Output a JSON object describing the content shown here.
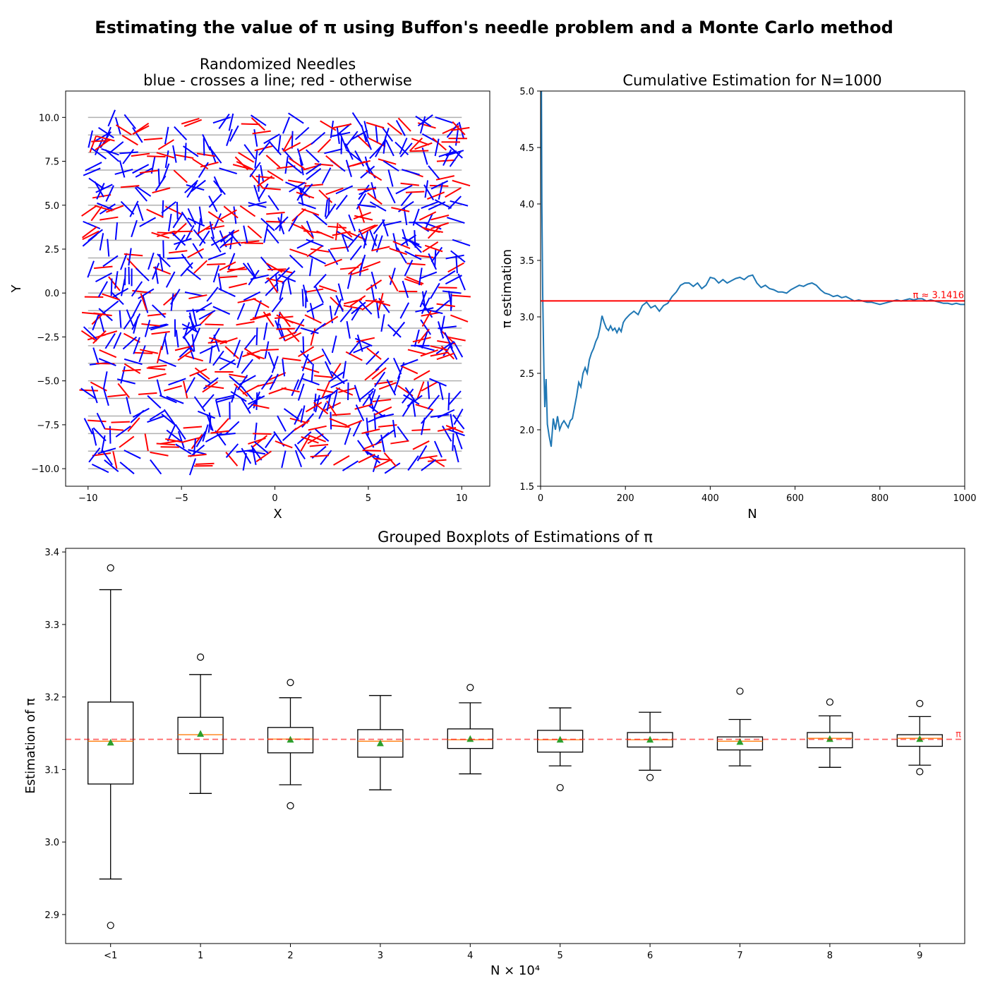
{
  "figure": {
    "title": "Estimating the value of π using Buffon's needle problem and a Monte Carlo method"
  },
  "chart_data": [
    {
      "type": "scatter",
      "title_line1": "Randomized Needles",
      "title_line2": "blue - crosses a line; red - otherwise",
      "xlabel": "X",
      "ylabel": "Y",
      "xlim": [
        -11.2,
        11.5
      ],
      "ylim": [
        -11.0,
        11.5
      ],
      "xticks": [
        -10,
        -5,
        0,
        5,
        10
      ],
      "yticks": [
        -10.0,
        -7.5,
        -5.0,
        -2.5,
        0.0,
        2.5,
        5.0,
        7.5,
        10.0
      ],
      "ytick_labels": [
        "−10.0",
        "−7.5",
        "−5.0",
        "−2.5",
        "0.0",
        "2.5",
        "5.0",
        "7.5",
        "10.0"
      ],
      "xtick_labels": [
        "−10",
        "−5",
        "0",
        "5",
        "10"
      ],
      "line_spacing": 1,
      "needle_length": 1,
      "needle_count": 1000,
      "region": [
        -10,
        10
      ],
      "colors": {
        "crosses": "#0000ff",
        "no_cross": "#ff0000",
        "lines": "#b0b0b0"
      }
    },
    {
      "type": "line",
      "title": "Cumulative Estimation for N=1000",
      "xlabel": "N",
      "ylabel": "π estimation",
      "xlim": [
        0,
        1000
      ],
      "ylim": [
        1.5,
        5.0
      ],
      "xticks": [
        0,
        200,
        400,
        600,
        800,
        1000
      ],
      "yticks": [
        1.5,
        2.0,
        2.5,
        3.0,
        3.5,
        4.0,
        4.5,
        5.0
      ],
      "reference": {
        "value": 3.1416,
        "label": "π ≈ 3.1416",
        "color": "#ff0000"
      },
      "series": [
        {
          "color": "#1f77b4",
          "points": [
            [
              1,
              8.0
            ],
            [
              2,
              5.0
            ],
            [
              3,
              4.0
            ],
            [
              5,
              3.2
            ],
            [
              8,
              2.5
            ],
            [
              10,
              2.2
            ],
            [
              13,
              2.45
            ],
            [
              16,
              2.05
            ],
            [
              20,
              1.95
            ],
            [
              25,
              1.85
            ],
            [
              30,
              2.1
            ],
            [
              35,
              2.0
            ],
            [
              40,
              2.12
            ],
            [
              45,
              2.0
            ],
            [
              50,
              2.05
            ],
            [
              55,
              2.08
            ],
            [
              60,
              2.05
            ],
            [
              65,
              2.02
            ],
            [
              70,
              2.08
            ],
            [
              75,
              2.1
            ],
            [
              80,
              2.2
            ],
            [
              85,
              2.3
            ],
            [
              90,
              2.42
            ],
            [
              95,
              2.38
            ],
            [
              100,
              2.5
            ],
            [
              105,
              2.55
            ],
            [
              110,
              2.5
            ],
            [
              115,
              2.62
            ],
            [
              120,
              2.68
            ],
            [
              125,
              2.72
            ],
            [
              130,
              2.78
            ],
            [
              135,
              2.82
            ],
            [
              140,
              2.9
            ],
            [
              145,
              3.01
            ],
            [
              150,
              2.95
            ],
            [
              155,
              2.9
            ],
            [
              160,
              2.88
            ],
            [
              165,
              2.92
            ],
            [
              170,
              2.88
            ],
            [
              175,
              2.9
            ],
            [
              180,
              2.86
            ],
            [
              185,
              2.9
            ],
            [
              190,
              2.87
            ],
            [
              195,
              2.95
            ],
            [
              200,
              2.98
            ],
            [
              210,
              3.02
            ],
            [
              220,
              3.05
            ],
            [
              230,
              3.02
            ],
            [
              240,
              3.1
            ],
            [
              250,
              3.13
            ],
            [
              260,
              3.08
            ],
            [
              270,
              3.1
            ],
            [
              280,
              3.05
            ],
            [
              290,
              3.1
            ],
            [
              300,
              3.12
            ],
            [
              310,
              3.18
            ],
            [
              320,
              3.22
            ],
            [
              330,
              3.28
            ],
            [
              340,
              3.3
            ],
            [
              350,
              3.3
            ],
            [
              360,
              3.27
            ],
            [
              370,
              3.3
            ],
            [
              380,
              3.25
            ],
            [
              390,
              3.28
            ],
            [
              400,
              3.35
            ],
            [
              410,
              3.34
            ],
            [
              420,
              3.3
            ],
            [
              430,
              3.33
            ],
            [
              440,
              3.3
            ],
            [
              450,
              3.32
            ],
            [
              460,
              3.34
            ],
            [
              470,
              3.35
            ],
            [
              480,
              3.33
            ],
            [
              490,
              3.36
            ],
            [
              500,
              3.37
            ],
            [
              510,
              3.3
            ],
            [
              520,
              3.26
            ],
            [
              530,
              3.28
            ],
            [
              540,
              3.25
            ],
            [
              550,
              3.24
            ],
            [
              560,
              3.22
            ],
            [
              570,
              3.22
            ],
            [
              580,
              3.21
            ],
            [
              590,
              3.24
            ],
            [
              600,
              3.26
            ],
            [
              610,
              3.28
            ],
            [
              620,
              3.27
            ],
            [
              630,
              3.29
            ],
            [
              640,
              3.3
            ],
            [
              650,
              3.28
            ],
            [
              660,
              3.24
            ],
            [
              670,
              3.21
            ],
            [
              680,
              3.2
            ],
            [
              690,
              3.18
            ],
            [
              700,
              3.19
            ],
            [
              710,
              3.17
            ],
            [
              720,
              3.18
            ],
            [
              730,
              3.16
            ],
            [
              740,
              3.14
            ],
            [
              750,
              3.15
            ],
            [
              760,
              3.14
            ],
            [
              770,
              3.13
            ],
            [
              780,
              3.13
            ],
            [
              790,
              3.12
            ],
            [
              800,
              3.11
            ],
            [
              810,
              3.12
            ],
            [
              820,
              3.13
            ],
            [
              830,
              3.14
            ],
            [
              840,
              3.15
            ],
            [
              850,
              3.14
            ],
            [
              860,
              3.15
            ],
            [
              870,
              3.16
            ],
            [
              880,
              3.15
            ],
            [
              890,
              3.16
            ],
            [
              900,
              3.16
            ],
            [
              910,
              3.14
            ],
            [
              920,
              3.15
            ],
            [
              930,
              3.14
            ],
            [
              940,
              3.13
            ],
            [
              950,
              3.12
            ],
            [
              960,
              3.12
            ],
            [
              970,
              3.11
            ],
            [
              980,
              3.12
            ],
            [
              990,
              3.11
            ],
            [
              1000,
              3.11
            ]
          ]
        }
      ]
    },
    {
      "type": "boxplot",
      "title": "Grouped Boxplots of Estimations of π",
      "xlabel": "N × 10⁴",
      "ylabel": "Estimation of π",
      "ylim": [
        2.86,
        3.405
      ],
      "yticks": [
        2.9,
        3.0,
        3.1,
        3.2,
        3.3,
        3.4
      ],
      "categories": [
        "<1",
        "1",
        "2",
        "3",
        "4",
        "5",
        "6",
        "7",
        "8",
        "9"
      ],
      "reference": {
        "value": 3.1416,
        "label": "π",
        "color": "#ff0000"
      },
      "colors": {
        "median": "#ff7f0e",
        "mean": "#2ca02c",
        "box": "#000000"
      },
      "boxes": [
        {
          "whislo": 2.949,
          "q1": 3.08,
          "med": 3.139,
          "q3": 3.193,
          "whishi": 3.348,
          "mean": 3.137,
          "fliers": [
            3.378,
            2.885
          ]
        },
        {
          "whislo": 3.067,
          "q1": 3.122,
          "med": 3.148,
          "q3": 3.172,
          "whishi": 3.231,
          "mean": 3.149,
          "fliers": [
            3.255
          ]
        },
        {
          "whislo": 3.079,
          "q1": 3.123,
          "med": 3.142,
          "q3": 3.158,
          "whishi": 3.199,
          "mean": 3.141,
          "fliers": [
            3.22,
            3.05
          ]
        },
        {
          "whislo": 3.072,
          "q1": 3.117,
          "med": 3.139,
          "q3": 3.155,
          "whishi": 3.202,
          "mean": 3.136,
          "fliers": []
        },
        {
          "whislo": 3.094,
          "q1": 3.129,
          "med": 3.141,
          "q3": 3.156,
          "whishi": 3.192,
          "mean": 3.142,
          "fliers": [
            3.213
          ]
        },
        {
          "whislo": 3.105,
          "q1": 3.124,
          "med": 3.141,
          "q3": 3.154,
          "whishi": 3.185,
          "mean": 3.141,
          "fliers": [
            3.075
          ]
        },
        {
          "whislo": 3.099,
          "q1": 3.131,
          "med": 3.141,
          "q3": 3.151,
          "whishi": 3.179,
          "mean": 3.141,
          "fliers": [
            3.089
          ]
        },
        {
          "whislo": 3.105,
          "q1": 3.127,
          "med": 3.139,
          "q3": 3.145,
          "whishi": 3.169,
          "mean": 3.138,
          "fliers": [
            3.208
          ]
        },
        {
          "whislo": 3.103,
          "q1": 3.13,
          "med": 3.143,
          "q3": 3.151,
          "whishi": 3.174,
          "mean": 3.142,
          "fliers": [
            3.193
          ]
        },
        {
          "whislo": 3.106,
          "q1": 3.132,
          "med": 3.143,
          "q3": 3.148,
          "whishi": 3.173,
          "mean": 3.142,
          "fliers": [
            3.191,
            3.097
          ]
        }
      ]
    }
  ]
}
